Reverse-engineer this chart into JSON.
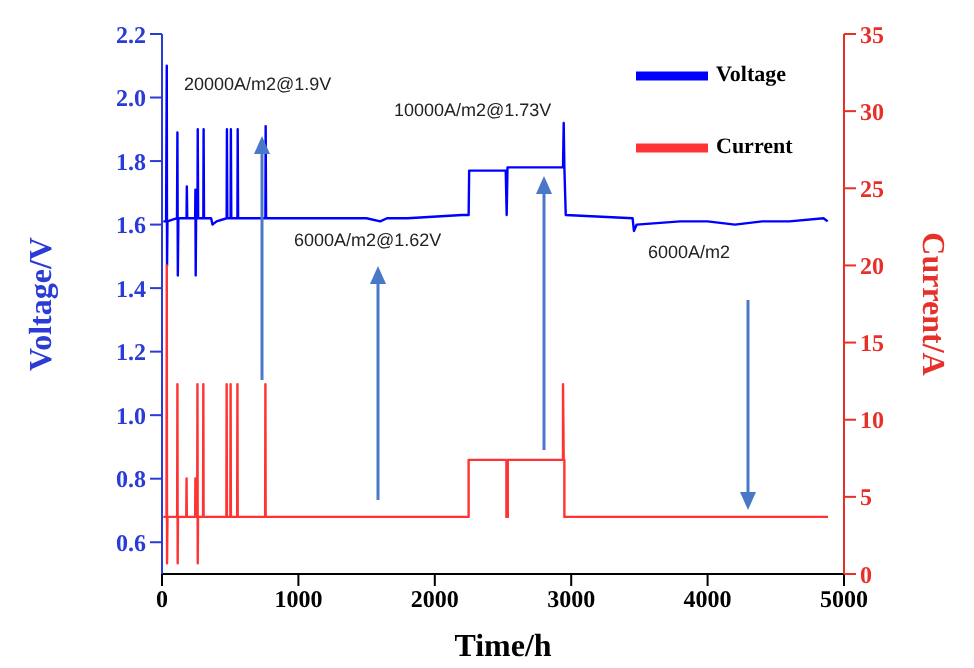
{
  "chart_data": {
    "type": "line",
    "xlabel": "Time/h",
    "ylabel": "Voltage/V",
    "y2label": "Current/A",
    "xlim": [
      0,
      5000
    ],
    "xticks": [
      0,
      1000,
      2000,
      3000,
      4000,
      5000
    ],
    "ylim": [
      0.5,
      2.2
    ],
    "yticks": [
      0.6,
      0.8,
      {
        "value": 1,
        "label": "1.0"
      },
      1.2,
      1.4,
      1.6,
      1.8,
      {
        "value": 2,
        "label": "2.0"
      },
      2.2
    ],
    "y2lim": [
      0,
      35
    ],
    "y2ticks": [
      0,
      5,
      10,
      15,
      20,
      25,
      30,
      35
    ],
    "legend": "top right",
    "marker": "none",
    "annotations": [
      "20000A/m2@1.9V",
      "10000A/m2@1.73V",
      "6000A/m2@1.62V",
      "6000A/m2"
    ],
    "series": [
      {
        "name": "Voltage",
        "color": "#0000ff",
        "x": [
          10,
          30,
          35,
          37,
          40,
          110,
          113,
          116,
          120,
          180,
          182,
          185,
          243,
          245,
          247,
          250,
          260,
          262,
          265,
          303,
          305,
          308,
          360,
          370,
          400,
          474,
          476,
          479,
          503,
          505,
          508,
          553,
          555,
          558,
          758,
          760,
          763,
          1500,
          1600,
          1650,
          1800,
          2200,
          2248,
          2252,
          2520,
          2527,
          2533,
          2560,
          2940,
          2945,
          2950,
          2960,
          3450,
          3460,
          3480,
          3800,
          4000,
          4200,
          4400,
          4600,
          4850,
          4880
        ],
        "values": [
          1.61,
          1.61,
          2.1,
          1.47,
          1.61,
          1.62,
          1.89,
          1.44,
          1.62,
          1.62,
          1.72,
          1.62,
          1.62,
          1.71,
          1.44,
          1.62,
          1.62,
          1.9,
          1.62,
          1.62,
          1.9,
          1.62,
          1.62,
          1.6,
          1.61,
          1.62,
          1.9,
          1.62,
          1.62,
          1.9,
          1.62,
          1.62,
          1.9,
          1.62,
          1.62,
          1.91,
          1.62,
          1.62,
          1.61,
          1.62,
          1.62,
          1.63,
          1.63,
          1.77,
          1.77,
          1.63,
          1.78,
          1.78,
          1.78,
          1.92,
          1.78,
          1.63,
          1.62,
          1.58,
          1.6,
          1.61,
          1.61,
          1.6,
          1.61,
          1.61,
          1.62,
          1.61
        ]
      },
      {
        "name": "Current",
        "color": "#ff3333",
        "axis": "y2",
        "x": [
          10,
          33,
          35,
          37,
          40,
          111,
          113,
          115,
          117,
          178,
          180,
          182,
          243,
          245,
          247,
          258,
          260,
          262,
          264,
          301,
          303,
          305,
          472,
          474,
          476,
          501,
          503,
          505,
          551,
          553,
          555,
          756,
          758,
          760,
          2248,
          2248,
          2525,
          2525,
          2535,
          2535,
          2940,
          2940,
          2945,
          2950,
          2950,
          4883
        ],
        "values": [
          3.7,
          3.7,
          20,
          0.7,
          3.7,
          3.7,
          12.3,
          0.7,
          3.7,
          3.7,
          6.2,
          3.7,
          3.7,
          6.2,
          3.7,
          3.7,
          12.3,
          0.7,
          3.7,
          3.7,
          12.3,
          3.7,
          3.7,
          12.3,
          3.7,
          3.7,
          12.3,
          3.7,
          3.7,
          12.3,
          3.7,
          3.7,
          12.3,
          3.7,
          3.7,
          7.4,
          7.4,
          3.7,
          3.7,
          7.4,
          7.4,
          12.3,
          7.4,
          7.4,
          3.7,
          3.7
        ]
      }
    ]
  }
}
